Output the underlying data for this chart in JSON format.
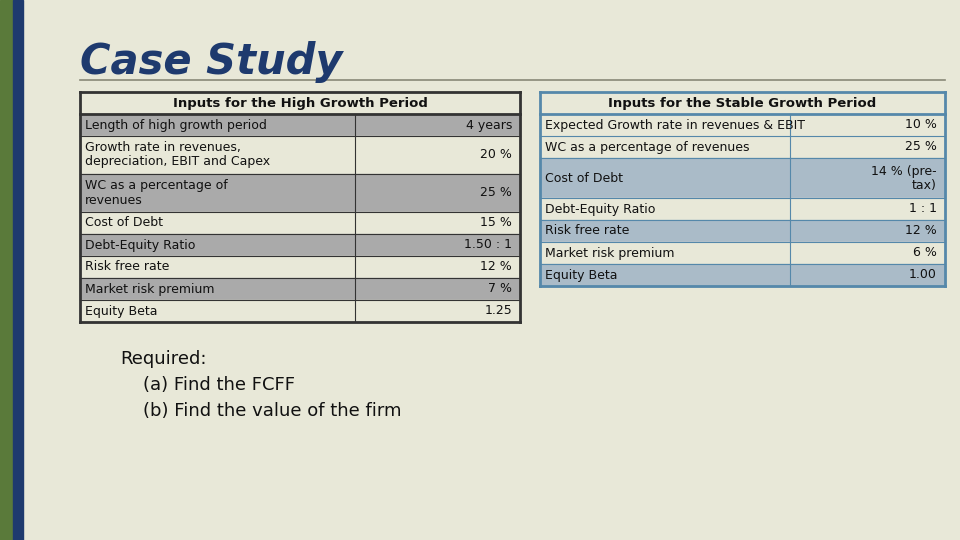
{
  "title": "Case Study",
  "title_color": "#1e3a6e",
  "bg_color": "#e8e8d8",
  "sidebar_green": "#5a7a3a",
  "sidebar_blue": "#1e3a6e",
  "left_table_title": "Inputs for the High Growth Period",
  "left_rows": [
    [
      "Length of high growth period",
      "4 years"
    ],
    [
      "Growth rate in revenues,\ndepreciation, EBIT and Capex",
      "20 %"
    ],
    [
      "WC as a percentage of\nrevenues",
      "25 %"
    ],
    [
      "Cost of Debt",
      "15 %"
    ],
    [
      "Debt-Equity Ratio",
      "1.50 : 1"
    ],
    [
      "Risk free rate",
      "12 %"
    ],
    [
      "Market risk premium",
      "7 %"
    ],
    [
      "Equity Beta",
      "1.25"
    ]
  ],
  "right_table_title": "Inputs for the Stable Growth Period",
  "right_rows": [
    [
      "Expected Growth rate in revenues & EBIT",
      "10 %"
    ],
    [
      "WC as a percentage of revenues",
      "25 %"
    ],
    [
      "Cost of Debt",
      "14 % (pre-\ntax)"
    ],
    [
      "Debt-Equity Ratio",
      "1 : 1"
    ],
    [
      "Risk free rate",
      "12 %"
    ],
    [
      "Market risk premium",
      "6 %"
    ],
    [
      "Equity Beta",
      "1.00"
    ]
  ],
  "left_shaded_color": "#aaaaaa",
  "left_unshaded_color": "#e8e8d8",
  "right_shaded_color": "#aabbc8",
  "right_unshaded_color": "#e8e8d8",
  "left_border_color": "#333333",
  "right_border_color": "#5588aa",
  "footer_lines": [
    "Required:",
    "    (a) Find the FCFF",
    "    (b) Find the value of the firm"
  ]
}
